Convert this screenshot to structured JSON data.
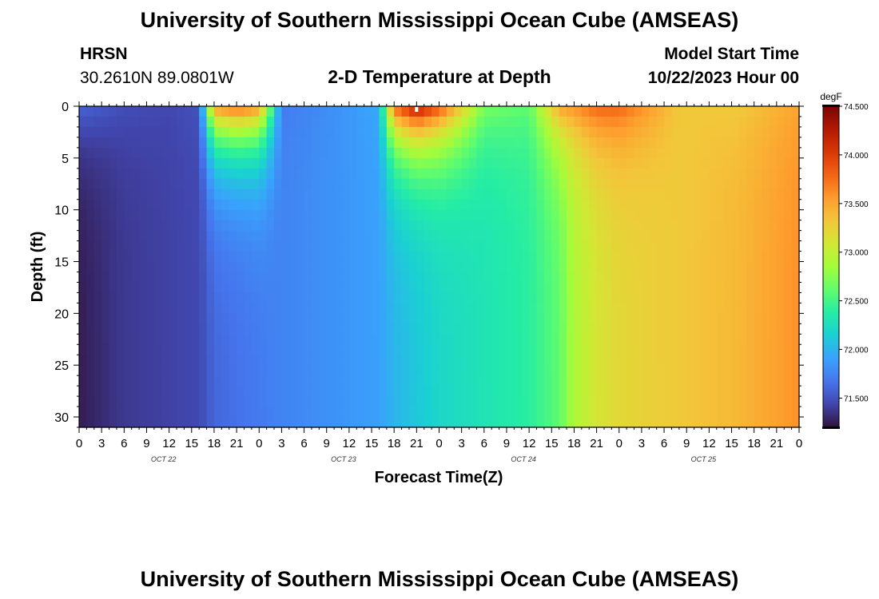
{
  "header": {
    "title": "University of Southern Mississippi Ocean Cube (AMSEAS)",
    "station": "HRSN",
    "coords": "30.2610N  89.0801W",
    "subtitle": "2-D Temperature at Depth",
    "model_start_label": "Model Start Time",
    "model_start_value": "10/22/2023 Hour 00"
  },
  "footer": {
    "title": "University of Southern Mississippi Ocean Cube (AMSEAS)"
  },
  "chart_data": {
    "type": "heatmap",
    "title": "2-D Temperature at Depth",
    "xlabel": "Forecast Time(Z)",
    "ylabel": "Depth (ft)",
    "x_ticks": [
      "0",
      "3",
      "6",
      "9",
      "12",
      "15",
      "18",
      "21",
      "0",
      "3",
      "6",
      "9",
      "12",
      "15",
      "18",
      "21",
      "0",
      "3",
      "6",
      "9",
      "12",
      "15",
      "18",
      "21",
      "0",
      "3",
      "6",
      "9",
      "12",
      "15",
      "18",
      "21",
      "0"
    ],
    "date_labels": [
      "OCT 22",
      "OCT 23",
      "OCT 24",
      "OCT 25"
    ],
    "y_ticks": [
      0,
      5,
      10,
      15,
      20,
      25,
      30
    ],
    "ylim": [
      0,
      31
    ],
    "xlim_hours": [
      0,
      96
    ],
    "colorbar": {
      "unit": "degF",
      "ticks": [
        "74.500",
        "74.000",
        "73.500",
        "73.000",
        "72.500",
        "72.000",
        "71.500"
      ],
      "range": [
        71.2,
        74.5
      ],
      "colors": [
        "#30123b",
        "#4145ab",
        "#4675ed",
        "#39a2fc",
        "#1bcfd4",
        "#24eca6",
        "#61fc6c",
        "#a4fc3b",
        "#d1e834",
        "#f3c63a",
        "#fe9b2d",
        "#f36315",
        "#d93806",
        "#b11901",
        "#7a0402"
      ]
    },
    "temperature_profiles": [
      {
        "hour": 0,
        "d0": 71.6,
        "d31": 71.25
      },
      {
        "hour": 6,
        "d0": 71.48,
        "d31": 71.38
      },
      {
        "hour": 12,
        "d0": 71.45,
        "d31": 71.42
      },
      {
        "hour": 16,
        "d0": 71.5,
        "d31": 71.45
      },
      {
        "hour": 18,
        "d0": 73.6,
        "d31": 71.6
      },
      {
        "hour": 21,
        "d0": 73.8,
        "d31": 71.65
      },
      {
        "hour": 24,
        "d0": 73.6,
        "d31": 71.7
      },
      {
        "hour": 27,
        "d0": 71.7,
        "d31": 71.75
      },
      {
        "hour": 36,
        "d0": 71.85,
        "d31": 71.85
      },
      {
        "hour": 40,
        "d0": 71.95,
        "d31": 71.9
      },
      {
        "hour": 42,
        "d0": 73.8,
        "d31": 72.0
      },
      {
        "hour": 45,
        "d0": 74.3,
        "d31": 72.1
      },
      {
        "hour": 48,
        "d0": 73.9,
        "d31": 72.2
      },
      {
        "hour": 54,
        "d0": 72.7,
        "d31": 72.3
      },
      {
        "hour": 60,
        "d0": 72.6,
        "d31": 72.4
      },
      {
        "hour": 64,
        "d0": 73.5,
        "d31": 72.6
      },
      {
        "hour": 66,
        "d0": 73.6,
        "d31": 72.9
      },
      {
        "hour": 69,
        "d0": 73.8,
        "d31": 73.1
      },
      {
        "hour": 72,
        "d0": 73.8,
        "d31": 73.2
      },
      {
        "hour": 80,
        "d0": 73.3,
        "d31": 73.3
      },
      {
        "hour": 88,
        "d0": 73.3,
        "d31": 73.4
      },
      {
        "hour": 96,
        "d0": 73.5,
        "d31": 73.6
      }
    ]
  }
}
